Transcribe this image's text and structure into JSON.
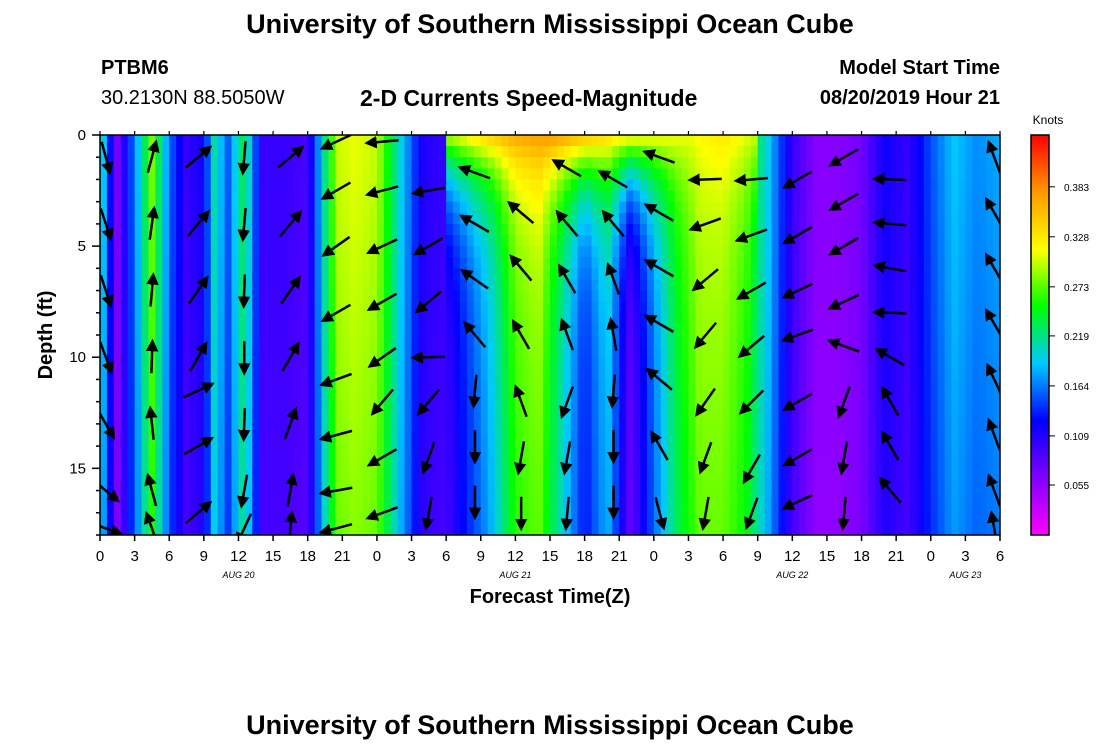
{
  "page": {
    "title_top": "University of Southern Mississippi Ocean Cube",
    "title_bottom": "University of Southern Mississippi Ocean Cube",
    "station_id": "PTBM6",
    "station_location": "30.2130N 88.5050W",
    "chart_heading": "2-D Currents Speed-Magnitude",
    "model_label": "Model Start Time",
    "model_time": "08/20/2019 Hour 21"
  },
  "chart_data": {
    "type": "heatmap",
    "title": "2-D Currents Speed-Magnitude",
    "xlabel": "Forecast Time(Z)",
    "ylabel": "Depth (ft)",
    "x_tick_labels": [
      "0",
      "3",
      "6",
      "9",
      "12",
      "15",
      "18",
      "21",
      "0",
      "3",
      "6",
      "9",
      "12",
      "15",
      "18",
      "21",
      "0",
      "3",
      "6",
      "9",
      "12",
      "15",
      "18",
      "21",
      "0",
      "3",
      "6"
    ],
    "date_labels": [
      {
        "label": "AUG 20",
        "index": 4
      },
      {
        "label": "AUG 21",
        "index": 12
      },
      {
        "label": "AUG 22",
        "index": 20
      },
      {
        "label": "AUG 23",
        "index": 25
      }
    ],
    "y_ticks": [
      0,
      5,
      10,
      15
    ],
    "ylim": [
      0,
      18
    ],
    "xlim_hours": [
      0,
      78
    ],
    "colorbar": {
      "unit": "Knots",
      "range": [
        0,
        0.44
      ],
      "tick_values": [
        0.055,
        0.109,
        0.164,
        0.219,
        0.273,
        0.328,
        0.383
      ],
      "tick_labels": [
        "0.055",
        "0.109",
        "0.164",
        "0.219",
        "0.273",
        "0.328",
        "0.383"
      ],
      "colors": [
        "#ff00ff",
        "#8000ff",
        "#0000ff",
        "#00c8ff",
        "#00ff00",
        "#ffff00",
        "#ff9900",
        "#ff0000"
      ]
    },
    "profiles": [
      {
        "t": 0,
        "s": 0.22
      },
      {
        "t": 1.5,
        "s": 0.07
      },
      {
        "t": 3.5,
        "s": 0.2
      },
      {
        "t": 4.5,
        "s": 0.28
      },
      {
        "t": 6,
        "s": 0.16
      },
      {
        "t": 7.5,
        "s": 0.1
      },
      {
        "t": 9,
        "s": 0.12
      },
      {
        "t": 10,
        "s": 0.22
      },
      {
        "t": 11,
        "s": 0.15
      },
      {
        "t": 12.5,
        "s": 0.24
      },
      {
        "t": 14,
        "s": 0.1
      },
      {
        "t": 16,
        "s": 0.1
      },
      {
        "t": 18,
        "s": 0.09
      },
      {
        "t": 19.5,
        "s": 0.22
      },
      {
        "t": 20.5,
        "s": 0.3
      },
      {
        "t": 22,
        "s": 0.31
      },
      {
        "t": 24,
        "s": 0.3
      },
      {
        "t": 26,
        "s": 0.2
      },
      {
        "t": 28,
        "s": 0.11
      },
      {
        "t": 30,
        "s": 0.1
      },
      {
        "t": 32,
        "s": 0.15
      },
      {
        "t": 34,
        "s": 0.2
      },
      {
        "t": 36,
        "s": 0.28
      },
      {
        "t": 38,
        "s": 0.3
      },
      {
        "t": 40,
        "s": 0.22
      },
      {
        "t": 42,
        "s": 0.14
      },
      {
        "t": 44,
        "s": 0.2
      },
      {
        "t": 46,
        "s": 0.08
      },
      {
        "t": 48,
        "s": 0.17
      },
      {
        "t": 50,
        "s": 0.25
      },
      {
        "t": 52,
        "s": 0.3
      },
      {
        "t": 54,
        "s": 0.3
      },
      {
        "t": 56,
        "s": 0.27
      },
      {
        "t": 58,
        "s": 0.19
      },
      {
        "t": 60,
        "s": 0.1
      },
      {
        "t": 62,
        "s": 0.06
      },
      {
        "t": 64,
        "s": 0.06
      },
      {
        "t": 66,
        "s": 0.07
      },
      {
        "t": 68,
        "s": 0.12
      },
      {
        "t": 70,
        "s": 0.1
      },
      {
        "t": 72,
        "s": 0.15
      },
      {
        "t": 74,
        "s": 0.19
      },
      {
        "t": 76,
        "s": 0.17
      },
      {
        "t": 78,
        "s": 0.18
      }
    ],
    "surface_boosts": [
      {
        "t": 30,
        "s": 0.3
      },
      {
        "t": 33,
        "s": 0.34
      },
      {
        "t": 36,
        "s": 0.37
      },
      {
        "t": 39,
        "s": 0.38
      },
      {
        "t": 42,
        "s": 0.36
      },
      {
        "t": 45,
        "s": 0.33
      },
      {
        "t": 48,
        "s": 0.32
      },
      {
        "t": 51,
        "s": 0.31
      },
      {
        "t": 54,
        "s": 0.33
      },
      {
        "t": 57,
        "s": 0.3
      }
    ],
    "vectors": [
      {
        "t": 0.5,
        "d": 1,
        "a": -75
      },
      {
        "t": 0.5,
        "d": 4,
        "a": -72
      },
      {
        "t": 0.5,
        "d": 7,
        "a": -72
      },
      {
        "t": 0.5,
        "d": 10,
        "a": -70
      },
      {
        "t": 0.5,
        "d": 13,
        "a": -60
      },
      {
        "t": 0.5,
        "d": 16,
        "a": -40
      },
      {
        "t": 0.5,
        "d": 17.7,
        "a": -20
      },
      {
        "t": 4.5,
        "d": 1,
        "a": 75
      },
      {
        "t": 4.5,
        "d": 4,
        "a": 82
      },
      {
        "t": 4.5,
        "d": 7,
        "a": 85
      },
      {
        "t": 4.5,
        "d": 10,
        "a": 88
      },
      {
        "t": 4.5,
        "d": 13,
        "a": 96
      },
      {
        "t": 4.5,
        "d": 16,
        "a": 105
      },
      {
        "t": 4.5,
        "d": 17.7,
        "a": 110
      },
      {
        "t": 8.5,
        "d": 1,
        "a": 40
      },
      {
        "t": 8.5,
        "d": 4,
        "a": 50
      },
      {
        "t": 8.5,
        "d": 7,
        "a": 55
      },
      {
        "t": 8.5,
        "d": 10,
        "a": 60
      },
      {
        "t": 8.5,
        "d": 11.5,
        "a": 25
      },
      {
        "t": 8.5,
        "d": 14,
        "a": 30
      },
      {
        "t": 8.5,
        "d": 17,
        "a": 40
      },
      {
        "t": 12.5,
        "d": 1,
        "a": -95
      },
      {
        "t": 12.5,
        "d": 4,
        "a": -95
      },
      {
        "t": 12.5,
        "d": 7,
        "a": -92
      },
      {
        "t": 12.5,
        "d": 10,
        "a": -90
      },
      {
        "t": 12.5,
        "d": 13,
        "a": -92
      },
      {
        "t": 12.5,
        "d": 16,
        "a": -100
      },
      {
        "t": 12.5,
        "d": 17.7,
        "a": -115
      },
      {
        "t": 16.5,
        "d": 1,
        "a": 40
      },
      {
        "t": 16.5,
        "d": 4,
        "a": 50
      },
      {
        "t": 16.5,
        "d": 7,
        "a": 55
      },
      {
        "t": 16.5,
        "d": 10,
        "a": 60
      },
      {
        "t": 16.5,
        "d": 13,
        "a": 70
      },
      {
        "t": 16.5,
        "d": 16,
        "a": 80
      },
      {
        "t": 16.5,
        "d": 17.7,
        "a": 85
      },
      {
        "t": 20.5,
        "d": 0.3,
        "a": -155
      },
      {
        "t": 20.5,
        "d": 2.5,
        "a": -150
      },
      {
        "t": 20.5,
        "d": 5,
        "a": -145
      },
      {
        "t": 20.5,
        "d": 8,
        "a": -150
      },
      {
        "t": 20.5,
        "d": 11,
        "a": -160
      },
      {
        "t": 20.5,
        "d": 13.5,
        "a": -165
      },
      {
        "t": 20.5,
        "d": 16,
        "a": -170
      },
      {
        "t": 20.5,
        "d": 17.7,
        "a": -165
      },
      {
        "t": 24.5,
        "d": 0.3,
        "a": -175
      },
      {
        "t": 24.5,
        "d": 2.5,
        "a": -165
      },
      {
        "t": 24.5,
        "d": 5,
        "a": -155
      },
      {
        "t": 24.5,
        "d": 7.5,
        "a": -150
      },
      {
        "t": 24.5,
        "d": 10,
        "a": -145
      },
      {
        "t": 24.5,
        "d": 12,
        "a": -130
      },
      {
        "t": 24.5,
        "d": 14.5,
        "a": -150
      },
      {
        "t": 24.5,
        "d": 17,
        "a": -160
      },
      {
        "t": 28.5,
        "d": 2.5,
        "a": -170
      },
      {
        "t": 28.5,
        "d": 5,
        "a": -150
      },
      {
        "t": 28.5,
        "d": 7.5,
        "a": -140
      },
      {
        "t": 28.5,
        "d": 10,
        "a": -178
      },
      {
        "t": 28.5,
        "d": 12,
        "a": -130
      },
      {
        "t": 28.5,
        "d": 14.5,
        "a": -110
      },
      {
        "t": 28.5,
        "d": 17,
        "a": -100
      },
      {
        "t": 32.5,
        "d": 1.7,
        "a": 160
      },
      {
        "t": 32.5,
        "d": 4,
        "a": 150
      },
      {
        "t": 32.5,
        "d": 6.5,
        "a": 145
      },
      {
        "t": 32.5,
        "d": 9,
        "a": 130
      },
      {
        "t": 32.5,
        "d": 11.5,
        "a": -95
      },
      {
        "t": 32.5,
        "d": 14,
        "a": -90
      },
      {
        "t": 32.5,
        "d": 16.5,
        "a": -90
      },
      {
        "t": 36.5,
        "d": 3.5,
        "a": 140
      },
      {
        "t": 36.5,
        "d": 6,
        "a": 130
      },
      {
        "t": 36.5,
        "d": 9,
        "a": 120
      },
      {
        "t": 36.5,
        "d": 12,
        "a": 110
      },
      {
        "t": 36.5,
        "d": 14.5,
        "a": -100
      },
      {
        "t": 36.5,
        "d": 17,
        "a": -90
      },
      {
        "t": 40.5,
        "d": 1.5,
        "a": 150
      },
      {
        "t": 40.5,
        "d": 4,
        "a": 130
      },
      {
        "t": 40.5,
        "d": 6.5,
        "a": 120
      },
      {
        "t": 40.5,
        "d": 9,
        "a": 110
      },
      {
        "t": 40.5,
        "d": 12,
        "a": -110
      },
      {
        "t": 40.5,
        "d": 14.5,
        "a": -100
      },
      {
        "t": 40.5,
        "d": 17,
        "a": -95
      },
      {
        "t": 44.5,
        "d": 2,
        "a": 150
      },
      {
        "t": 44.5,
        "d": 4,
        "a": 130
      },
      {
        "t": 44.5,
        "d": 6.5,
        "a": 110
      },
      {
        "t": 44.5,
        "d": 9,
        "a": 100
      },
      {
        "t": 44.5,
        "d": 11.5,
        "a": -95
      },
      {
        "t": 44.5,
        "d": 14,
        "a": -90
      },
      {
        "t": 44.5,
        "d": 16.5,
        "a": -90
      },
      {
        "t": 48.5,
        "d": 1,
        "a": 160
      },
      {
        "t": 48.5,
        "d": 3.5,
        "a": 150
      },
      {
        "t": 48.5,
        "d": 6,
        "a": 150
      },
      {
        "t": 48.5,
        "d": 8.5,
        "a": 150
      },
      {
        "t": 48.5,
        "d": 11,
        "a": 140
      },
      {
        "t": 48.5,
        "d": 14,
        "a": 120
      },
      {
        "t": 48.5,
        "d": 17,
        "a": -75
      },
      {
        "t": 52.5,
        "d": 2,
        "a": -178
      },
      {
        "t": 52.5,
        "d": 4,
        "a": -160
      },
      {
        "t": 52.5,
        "d": 6.5,
        "a": -140
      },
      {
        "t": 52.5,
        "d": 9,
        "a": -130
      },
      {
        "t": 52.5,
        "d": 12,
        "a": -125
      },
      {
        "t": 52.5,
        "d": 14.5,
        "a": -110
      },
      {
        "t": 52.5,
        "d": 17,
        "a": -100
      },
      {
        "t": 56.5,
        "d": 2,
        "a": -175
      },
      {
        "t": 56.5,
        "d": 4.5,
        "a": -160
      },
      {
        "t": 56.5,
        "d": 7,
        "a": -150
      },
      {
        "t": 56.5,
        "d": 9.5,
        "a": -140
      },
      {
        "t": 56.5,
        "d": 12,
        "a": -135
      },
      {
        "t": 56.5,
        "d": 15,
        "a": -120
      },
      {
        "t": 56.5,
        "d": 17,
        "a": -110
      },
      {
        "t": 60.5,
        "d": 2,
        "a": -150
      },
      {
        "t": 60.5,
        "d": 4.5,
        "a": -150
      },
      {
        "t": 60.5,
        "d": 7,
        "a": -155
      },
      {
        "t": 60.5,
        "d": 9,
        "a": -160
      },
      {
        "t": 60.5,
        "d": 12,
        "a": -150
      },
      {
        "t": 60.5,
        "d": 14.5,
        "a": -150
      },
      {
        "t": 60.5,
        "d": 16.5,
        "a": -155
      },
      {
        "t": 64.5,
        "d": 1,
        "a": -150
      },
      {
        "t": 64.5,
        "d": 3,
        "a": -150
      },
      {
        "t": 64.5,
        "d": 5,
        "a": -150
      },
      {
        "t": 64.5,
        "d": 7.5,
        "a": -155
      },
      {
        "t": 64.5,
        "d": 9.5,
        "a": 160
      },
      {
        "t": 64.5,
        "d": 12,
        "a": -110
      },
      {
        "t": 64.5,
        "d": 14.5,
        "a": -100
      },
      {
        "t": 64.5,
        "d": 17,
        "a": -95
      },
      {
        "t": 68.5,
        "d": 2,
        "a": 178
      },
      {
        "t": 68.5,
        "d": 4,
        "a": 175
      },
      {
        "t": 68.5,
        "d": 6,
        "a": 170
      },
      {
        "t": 68.5,
        "d": 8,
        "a": 178
      },
      {
        "t": 68.5,
        "d": 10,
        "a": 150
      },
      {
        "t": 68.5,
        "d": 12,
        "a": 120
      },
      {
        "t": 68.5,
        "d": 14,
        "a": 120
      },
      {
        "t": 68.5,
        "d": 16,
        "a": 130
      },
      {
        "t": 77.5,
        "d": 1,
        "a": 110
      },
      {
        "t": 77.5,
        "d": 3.5,
        "a": 120
      },
      {
        "t": 77.5,
        "d": 6,
        "a": 120
      },
      {
        "t": 77.5,
        "d": 8.5,
        "a": 120
      },
      {
        "t": 77.5,
        "d": 11,
        "a": 115
      },
      {
        "t": 77.5,
        "d": 13.5,
        "a": 110
      },
      {
        "t": 77.5,
        "d": 16,
        "a": 110
      },
      {
        "t": 77.5,
        "d": 17.7,
        "a": 100
      }
    ]
  }
}
